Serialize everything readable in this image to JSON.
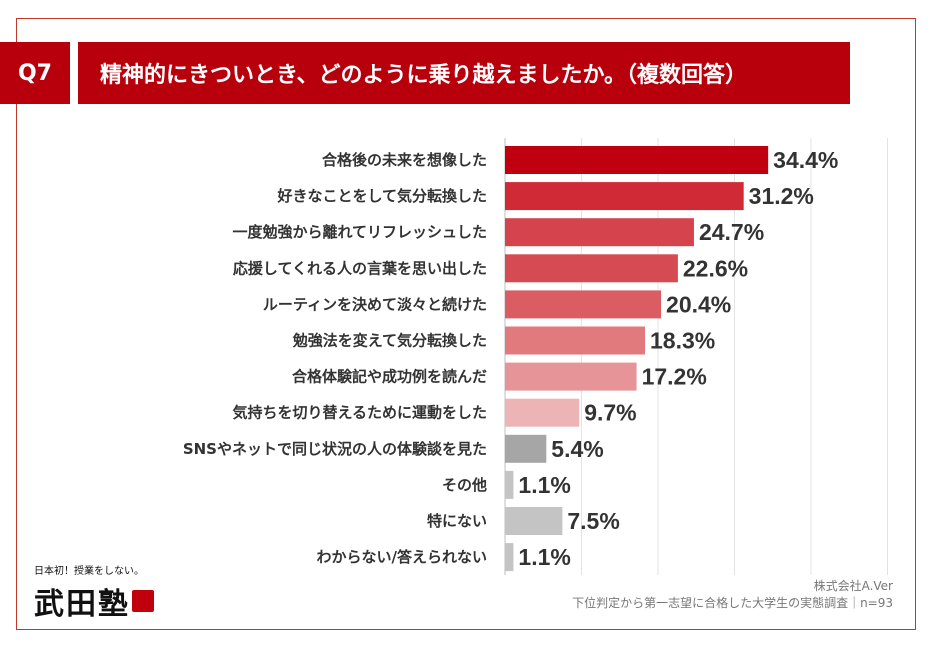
{
  "header": {
    "badge": "Q7",
    "title": "精神的にきついとき、どのように乗り越えましたか。（複数回答）"
  },
  "logo": {
    "tagline": "日本初！授業をしない。",
    "name": "武田塾"
  },
  "source": {
    "company": "株式会社A.Ver",
    "survey": "下位判定から第一志望に合格した大学生の実態調査｜n=93"
  },
  "chart_data": {
    "type": "bar",
    "orientation": "horizontal",
    "categories": [
      "合格後の未来を想像した",
      "好きなことをして気分転換した",
      "一度勉強から離れてリフレッシュした",
      "応援してくれる人の言葉を思い出した",
      "ルーティンを決めて淡々と続けた",
      "勉強法を変えて気分転換した",
      "合格体験記や成功例を読んだ",
      "気持ちを切り替えるために運動をした",
      "SNSやネットで同じ状況の人の体験談を見た",
      "その他",
      "特にない",
      "わからない/答えられない"
    ],
    "values": [
      34.4,
      31.2,
      24.7,
      22.6,
      20.4,
      18.3,
      17.2,
      9.7,
      5.4,
      1.1,
      7.5,
      1.1
    ],
    "value_labels": [
      "34.4%",
      "31.2%",
      "24.7%",
      "22.6%",
      "20.4%",
      "18.3%",
      "17.2%",
      "9.7%",
      "5.4%",
      "1.1%",
      "7.5%",
      "1.1%"
    ],
    "colors": [
      "#c00010",
      "#cf2a36",
      "#d5444d",
      "#d64a52",
      "#da5d63",
      "#e07a7d",
      "#e69497",
      "#edb4b5",
      "#a6a6a6",
      "#c4c4c4",
      "#c4c4c4",
      "#c4c4c4"
    ],
    "xlim": [
      0,
      50
    ],
    "grid": true
  }
}
